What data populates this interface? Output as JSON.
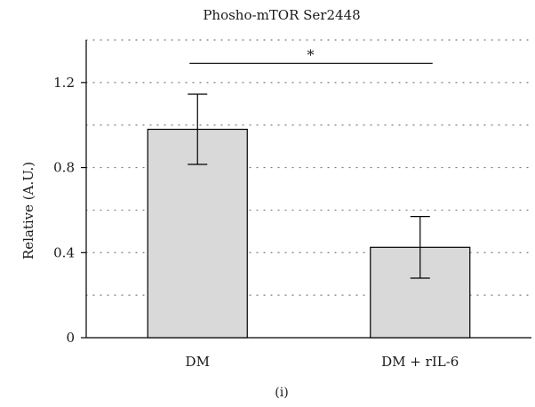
{
  "chart_data": {
    "type": "bar",
    "title": "Phosho-mTOR Ser2448",
    "xlabel": "",
    "ylabel": "Relative (A.U.)",
    "ylim": [
      0,
      1.4
    ],
    "yticks": [
      0,
      0.4,
      0.8,
      1.2
    ],
    "ytick_labels": [
      "0",
      "0.4",
      "0.8",
      "1.2"
    ],
    "grid": "dotted horizontal lines every 0.2",
    "categories": [
      "DM",
      "DM + rIL-6"
    ],
    "values": [
      0.98,
      0.425
    ],
    "errors": [
      0.165,
      0.145
    ],
    "bar_color": "#d9d9d9",
    "significance": {
      "from": 0,
      "to": 1,
      "label": "*",
      "y": 1.29
    },
    "panel_label": "(i)"
  }
}
